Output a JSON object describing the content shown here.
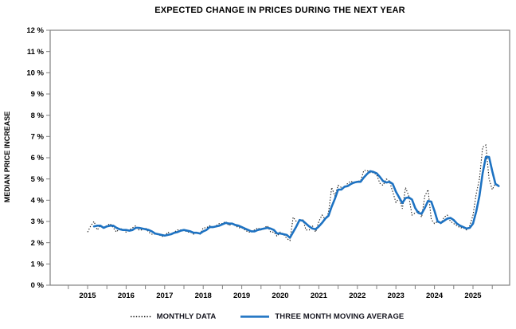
{
  "chart_data": {
    "type": "line",
    "title": "EXPECTED CHANGE IN PRICES DURING THE NEXT YEAR",
    "ylabel": "MEDIAN PRICE INCREASE",
    "xlabel": "",
    "grid": false,
    "legend_position": "bottom-center",
    "ylim": [
      0,
      12
    ],
    "y_tick_values": [
      0,
      1,
      2,
      3,
      4,
      5,
      6,
      7,
      8,
      9,
      10,
      11,
      12
    ],
    "y_tick_labels": [
      "0 %",
      "1 %",
      "2 %",
      "3 %",
      "4 %",
      "5 %",
      "6 %",
      "7 %",
      "8 %",
      "9 %",
      "10 %",
      "11 %",
      "12 %"
    ],
    "x_tick_years": [
      "2015",
      "2016",
      "2017",
      "2018",
      "2019",
      "2020",
      "2021",
      "2022",
      "2023",
      "2024",
      "2025"
    ],
    "x_minor_tick_interval_months": 6,
    "series": [
      {
        "name": "MONTHLY DATA",
        "style": "dotted",
        "color": "#1a1a1a",
        "start_month": "2015-01",
        "unit": "percent",
        "values_by_year": {
          "2015": [
            2.5,
            2.8,
            3.0,
            2.6,
            2.8,
            2.7,
            2.8,
            2.9,
            2.7,
            2.5,
            2.7,
            2.6
          ],
          "2016": [
            2.5,
            2.6,
            2.7,
            2.8,
            2.6,
            2.6,
            2.7,
            2.5,
            2.4,
            2.4,
            2.4,
            2.3
          ],
          "2017": [
            2.3,
            2.5,
            2.4,
            2.5,
            2.6,
            2.6,
            2.6,
            2.5,
            2.5,
            2.4,
            2.5,
            2.4
          ],
          "2018": [
            2.7,
            2.7,
            2.8,
            2.7,
            2.8,
            2.9,
            2.9,
            3.0,
            2.8,
            2.9,
            2.8,
            2.7
          ],
          "2019": [
            2.7,
            2.6,
            2.5,
            2.5,
            2.6,
            2.7,
            2.6,
            2.7,
            2.8,
            2.5,
            2.5,
            2.3
          ],
          "2020": [
            2.5,
            2.4,
            2.2,
            2.1,
            3.2,
            3.0,
            3.0,
            3.1,
            2.6,
            2.6,
            2.8,
            2.5
          ],
          "2021": [
            3.0,
            3.3,
            3.1,
            3.4,
            4.6,
            4.2,
            4.7,
            4.6,
            4.6,
            4.8,
            4.9,
            4.8
          ],
          "2022": [
            4.9,
            4.9,
            5.4,
            5.4,
            5.3,
            5.3,
            5.2,
            4.8,
            4.7,
            5.0,
            4.9,
            4.4
          ],
          "2023": [
            3.9,
            4.1,
            3.6,
            4.6,
            4.2,
            3.3,
            3.4,
            3.5,
            3.2,
            4.2,
            4.5,
            3.1
          ],
          "2024": [
            2.9,
            3.0,
            2.9,
            3.2,
            3.3,
            3.0,
            2.9,
            2.8,
            2.7,
            2.7,
            2.6,
            2.8
          ],
          "2025": [
            3.3,
            4.3,
            5.0,
            6.5,
            6.6,
            5.0,
            4.5,
            4.8,
            4.7
          ]
        }
      },
      {
        "name": "THREE MONTH MOVING AVERAGE",
        "style": "solid",
        "color": "#1d72c2",
        "derivation": "trailing 3-month mean of MONTHLY DATA"
      }
    ],
    "axis_color": "#808080",
    "text_color": "#000000"
  }
}
